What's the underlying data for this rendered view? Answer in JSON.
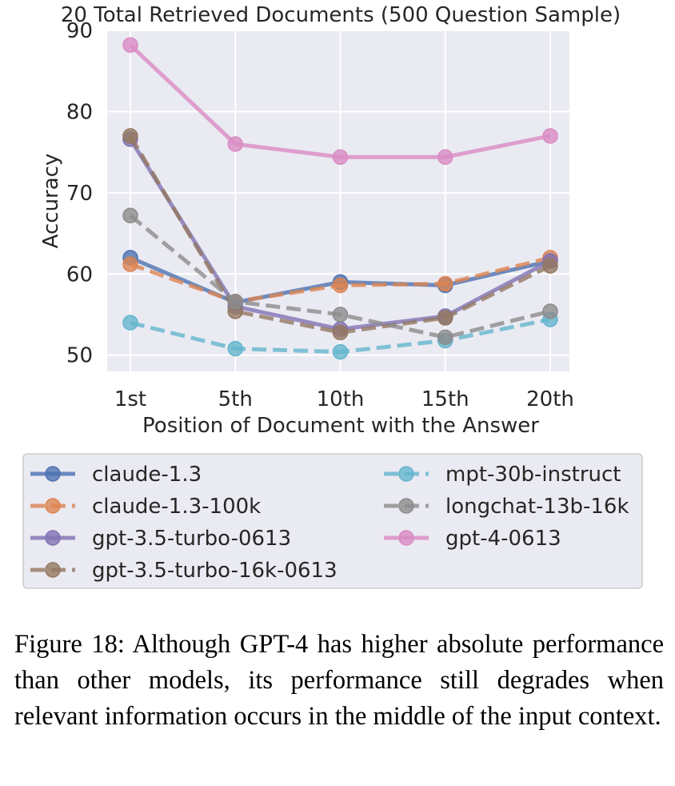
{
  "chart_data": {
    "type": "line",
    "title": "20 Total Retrieved Documents (500 Question Sample)",
    "xlabel": "Position of Document with the Answer",
    "ylabel": "Accuracy",
    "categories": [
      "1st",
      "5th",
      "10th",
      "15th",
      "20th"
    ],
    "ylim": [
      48,
      90
    ],
    "yticks": [
      50,
      60,
      70,
      80,
      90
    ],
    "grid": true,
    "legend_position": "below",
    "series": [
      {
        "name": "claude-1.3",
        "color": "#4c72b0",
        "dashed": false,
        "values": [
          62.0,
          56.5,
          59.0,
          58.6,
          61.6
        ]
      },
      {
        "name": "claude-1.3-100k",
        "color": "#dd8452",
        "dashed": true,
        "values": [
          61.2,
          56.6,
          58.6,
          58.8,
          62.0
        ]
      },
      {
        "name": "gpt-3.5-turbo-0613",
        "color": "#8172b3",
        "dashed": false,
        "values": [
          76.6,
          56.0,
          53.2,
          54.8,
          61.6
        ]
      },
      {
        "name": "gpt-3.5-turbo-16k-0613",
        "color": "#937860",
        "dashed": true,
        "values": [
          77.0,
          55.4,
          52.8,
          54.6,
          61.0
        ]
      },
      {
        "name": "mpt-30b-instruct",
        "color": "#64b5cd",
        "dashed": true,
        "values": [
          54.0,
          50.8,
          50.4,
          51.8,
          54.4
        ]
      },
      {
        "name": "longchat-13b-16k",
        "color": "#8c8c8c",
        "dashed": true,
        "values": [
          67.2,
          56.6,
          55.0,
          52.2,
          55.4
        ]
      },
      {
        "name": "gpt-4-0613",
        "color": "#da8bc3",
        "dashed": false,
        "values": [
          88.2,
          76.0,
          74.4,
          74.4,
          77.0
        ]
      }
    ]
  },
  "caption": "Figure 18: Although GPT-4 has higher absolute performance than other models, its performance still degrades when relevant information occurs in the middle of the input context."
}
